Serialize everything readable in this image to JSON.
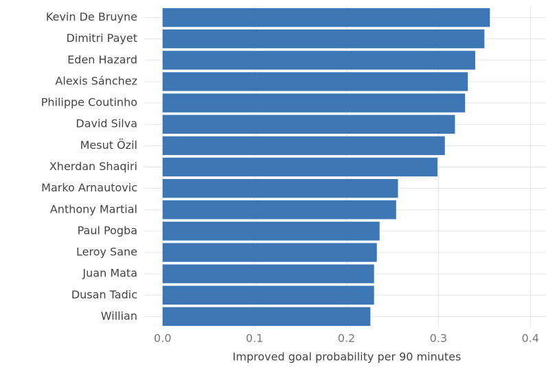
{
  "chart_data": {
    "type": "bar",
    "orientation": "horizontal",
    "x_label": "Improved goal probability per 90 minutes",
    "categories": [
      "Kevin De Bruyne",
      "Dimitri Payet",
      "Eden Hazard",
      "Alexis Sánchez",
      "Philippe Coutinho",
      "David Silva",
      "Mesut Özil",
      "Xherdan Shaqiri",
      "Marko Arnautovic",
      "Anthony Martial",
      "Paul Pogba",
      "Leroy Sane",
      "Juan Mata",
      "Dusan Tadic",
      "Willian"
    ],
    "values": [
      0.356,
      0.35,
      0.34,
      0.332,
      0.329,
      0.318,
      0.307,
      0.299,
      0.256,
      0.254,
      0.236,
      0.233,
      0.23,
      0.23,
      0.226
    ],
    "color": "#3d76b4",
    "xlim": [
      -0.02,
      0.417
    ],
    "xticks": [
      {
        "value": 0,
        "label": "0.0"
      },
      0.1,
      0.2,
      0.3,
      0.4
    ],
    "grid": true
  }
}
